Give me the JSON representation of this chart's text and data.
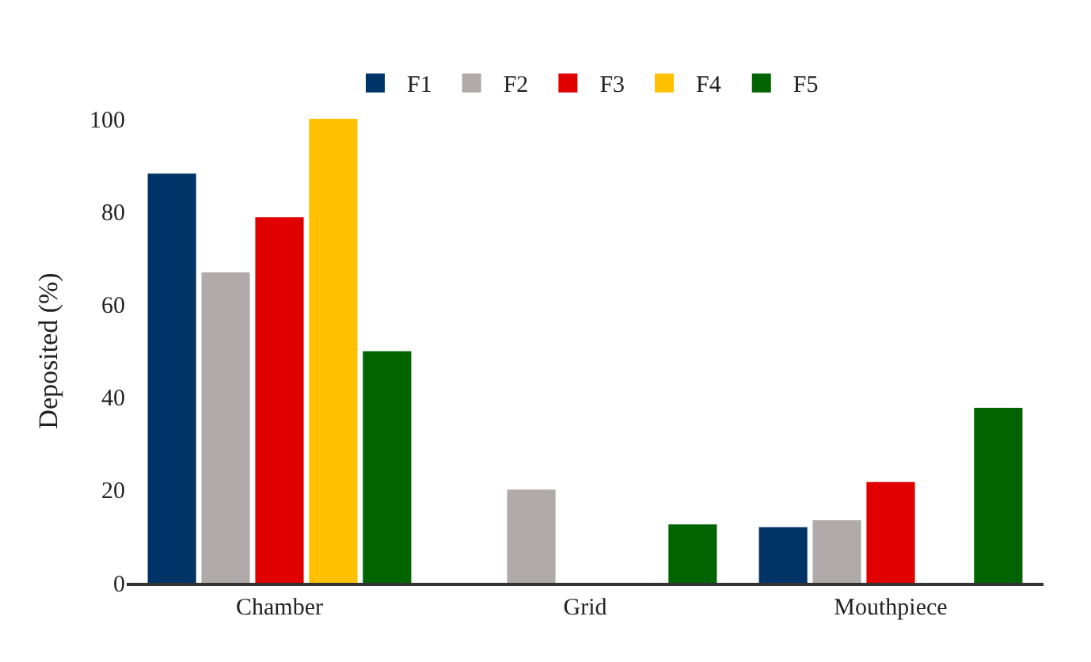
{
  "chart_data": {
    "type": "bar",
    "ylabel": "Deposited (%)",
    "categories": [
      "Chamber",
      "Grid",
      "Mouthpiece"
    ],
    "series": [
      {
        "name": "F1",
        "color": "#003366",
        "values": [
          88.2,
          null,
          12.0
        ]
      },
      {
        "name": "F2",
        "color": "#b0aaaa",
        "values": [
          66.9,
          20.1,
          13.5
        ]
      },
      {
        "name": "F3",
        "color": "#e00000",
        "values": [
          78.8,
          null,
          21.7
        ]
      },
      {
        "name": "F4",
        "color": "#ffc000",
        "values": [
          100,
          null,
          null
        ]
      },
      {
        "name": "F5",
        "color": "#006400",
        "values": [
          49.9,
          12.6,
          37.7
        ]
      }
    ],
    "ylim": [
      0,
      100
    ],
    "yticks": [
      0,
      20,
      40,
      60,
      80,
      100
    ],
    "grid": false,
    "legend": "top"
  }
}
